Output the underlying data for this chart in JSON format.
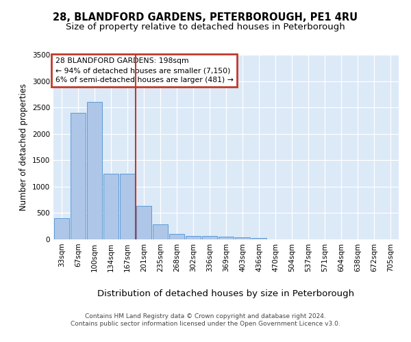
{
  "title": "28, BLANDFORD GARDENS, PETERBOROUGH, PE1 4RU",
  "subtitle": "Size of property relative to detached houses in Peterborough",
  "xlabel": "Distribution of detached houses by size in Peterborough",
  "ylabel": "Number of detached properties",
  "categories": [
    "33sqm",
    "67sqm",
    "100sqm",
    "134sqm",
    "167sqm",
    "201sqm",
    "235sqm",
    "268sqm",
    "302sqm",
    "336sqm",
    "369sqm",
    "403sqm",
    "436sqm",
    "470sqm",
    "504sqm",
    "537sqm",
    "571sqm",
    "604sqm",
    "638sqm",
    "672sqm",
    "705sqm"
  ],
  "values": [
    400,
    2400,
    2600,
    1250,
    1250,
    630,
    280,
    100,
    60,
    60,
    50,
    40,
    30,
    0,
    0,
    0,
    0,
    0,
    0,
    0,
    0
  ],
  "bar_color": "#aec6e8",
  "bar_edge_color": "#5b9bd5",
  "vline_index": 5,
  "vline_color": "#c0392b",
  "annotation_text": "28 BLANDFORD GARDENS: 198sqm\n← 94% of detached houses are smaller (7,150)\n6% of semi-detached houses are larger (481) →",
  "annotation_box_color": "#c0392b",
  "ylim": [
    0,
    3500
  ],
  "yticks": [
    0,
    500,
    1000,
    1500,
    2000,
    2500,
    3000,
    3500
  ],
  "bg_color": "#dce9f7",
  "grid_color": "#ffffff",
  "footer_line1": "Contains HM Land Registry data © Crown copyright and database right 2024.",
  "footer_line2": "Contains public sector information licensed under the Open Government Licence v3.0.",
  "title_fontsize": 10.5,
  "subtitle_fontsize": 9.5,
  "xlabel_fontsize": 9.5,
  "ylabel_fontsize": 8.5,
  "tick_fontsize": 7.5,
  "footer_fontsize": 6.5,
  "ann_fontsize": 7.8
}
